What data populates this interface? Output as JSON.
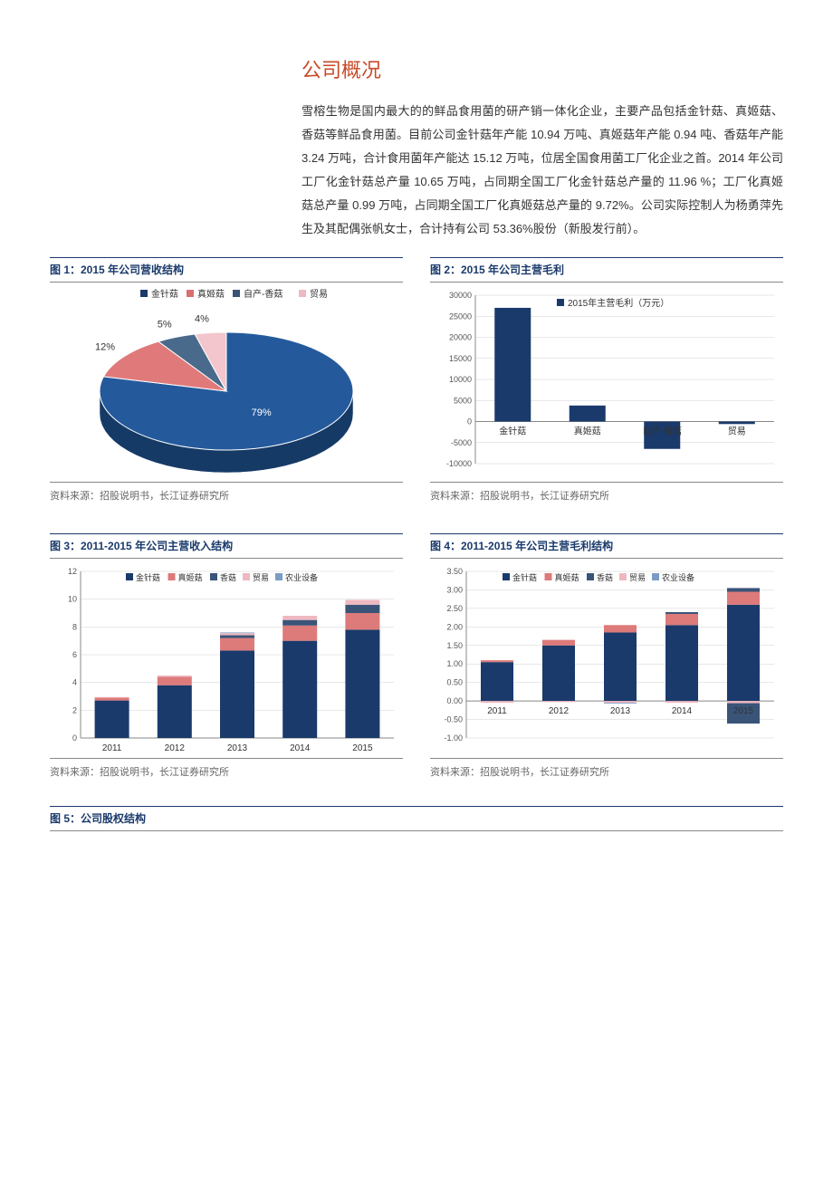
{
  "section": {
    "title": "公司概况"
  },
  "body": {
    "paragraph": "雪榕生物是国内最大的的鲜品食用菌的研产销一体化企业，主要产品包括金针菇、真姬菇、香菇等鲜品食用菌。目前公司金针菇年产能 10.94 万吨、真姬菇年产能 0.94 吨、香菇年产能 3.24 万吨，合计食用菌年产能达 15.12 万吨，位居全国食用菌工厂化企业之首。2014 年公司工厂化金针菇总产量 10.65 万吨，占同期全国工厂化金针菇总产量的 11.96 %；工厂化真姬菇总产量 0.99 万吨，占同期全国工厂化真姬菇总产量的 9.72%。公司实际控制人为杨勇萍先生及其配偶张帆女士，合计持有公司 53.36%股份（新股发行前）。"
  },
  "chart1": {
    "title": "图 1：2015 年公司营收结构",
    "type": "pie",
    "legend": [
      "金针菇",
      "真姬菇",
      "自产-香菇",
      "贸易"
    ],
    "slices": [
      {
        "label": "79%",
        "value": 79,
        "fill_top": "#245a9c",
        "fill_front": "#163a66"
      },
      {
        "label": "12%",
        "value": 12,
        "fill_top": "#e07a7a",
        "fill_front": "#b85555"
      },
      {
        "label": "5%",
        "value": 5,
        "fill_top": "#4a6a8c",
        "fill_front": "#2e4055"
      },
      {
        "label": "4%",
        "value": 4,
        "fill_top": "#f2c6cc",
        "fill_front": "#d0a0a8"
      }
    ],
    "legend_colors": [
      "#1a3a6b",
      "#d87070",
      "#3a5478",
      "#eeb8c0"
    ],
    "center_label_color": "#ffffff",
    "pct_label_color": "#333333",
    "source": "资料来源：招股说明书，长江证券研究所"
  },
  "chart2": {
    "title": "图 2：2015 年公司主营毛利",
    "type": "bar",
    "legend": "2015年主营毛利（万元）",
    "legend_color": "#1a3a6b",
    "categories": [
      "金针菇",
      "真姬菇",
      "自产-香菇",
      "贸易"
    ],
    "values": [
      27000,
      3800,
      -6500,
      -600
    ],
    "bar_color": "#1a3a6b",
    "ylim": [
      -10000,
      30000
    ],
    "ytick_step": 5000,
    "yticks": [
      "-10000",
      "-5000",
      "0",
      "5000",
      "10000",
      "15000",
      "20000",
      "25000",
      "30000"
    ],
    "axis_color": "#888888",
    "grid_color": "#d0d0d0",
    "label_fontsize": 10,
    "source": "资料来源：招股说明书，长江证券研究所"
  },
  "chart3": {
    "title": "图 3：2011-2015 年公司主营收入结构",
    "type": "stacked_bar",
    "legend": [
      "金针菇",
      "真姬菇",
      "香菇",
      "贸易",
      "农业设备"
    ],
    "legend_colors": [
      "#1a3a6b",
      "#dd7a7a",
      "#3a5478",
      "#eeb8c0",
      "#7a9cc4"
    ],
    "categories": [
      "2011",
      "2012",
      "2013",
      "2014",
      "2015"
    ],
    "series": {
      "金针菇": [
        2.7,
        3.8,
        6.3,
        7.0,
        7.8
      ],
      "真姬菇": [
        0.2,
        0.6,
        0.9,
        1.1,
        1.2
      ],
      "香菇": [
        0.0,
        0.0,
        0.2,
        0.4,
        0.6
      ],
      "贸易": [
        0.05,
        0.1,
        0.15,
        0.3,
        0.35
      ],
      "农业设备": [
        0.0,
        0.0,
        0.05,
        0.0,
        0.0
      ]
    },
    "ylim": [
      0,
      12
    ],
    "ytick_step": 2,
    "yticks": [
      "0",
      "2",
      "4",
      "6",
      "8",
      "10",
      "12"
    ],
    "axis_color": "#888888",
    "grid_color": "#d0d0d0",
    "source": "资料来源：招股说明书，长江证券研究所"
  },
  "chart4": {
    "title": "图 4：2011-2015 年公司主营毛利结构",
    "type": "stacked_bar_neg",
    "legend": [
      "金针菇",
      "真姬菇",
      "香菇",
      "贸易",
      "农业设备"
    ],
    "legend_colors": [
      "#1a3a6b",
      "#dd7a7a",
      "#3a5478",
      "#eeb8c0",
      "#7a9cc4"
    ],
    "categories": [
      "2011",
      "2012",
      "2013",
      "2014",
      "2015"
    ],
    "pos_series": {
      "金针菇": [
        1.05,
        1.5,
        1.85,
        2.05,
        2.6
      ],
      "真姬菇": [
        0.05,
        0.15,
        0.2,
        0.3,
        0.35
      ],
      "香菇": [
        0.0,
        0.0,
        0.0,
        0.05,
        0.1
      ]
    },
    "neg_series": {
      "贸易": [
        -0.05,
        -0.03,
        -0.05,
        -0.05,
        -0.06
      ],
      "农业设备": [
        0.0,
        0.0,
        -0.02,
        0.0,
        0.0
      ],
      "香菇_neg": [
        0.0,
        0.0,
        0.0,
        0.0,
        -0.55
      ]
    },
    "ylim": [
      -1.0,
      3.5
    ],
    "ytick_step": 0.5,
    "yticks": [
      "-1.00",
      "-0.50",
      "0.00",
      "0.50",
      "1.00",
      "1.50",
      "2.00",
      "2.50",
      "3.00",
      "3.50"
    ],
    "axis_color": "#888888",
    "grid_color": "#d0d0d0",
    "source": "资料来源：招股说明书，长江证券研究所"
  },
  "chart5": {
    "title": "图 5：公司股权结构"
  }
}
